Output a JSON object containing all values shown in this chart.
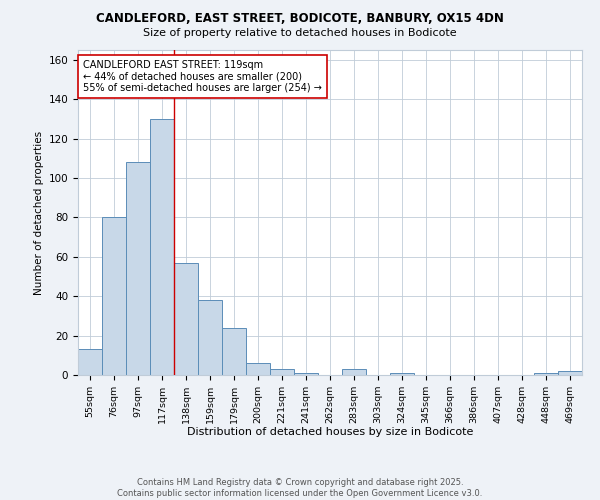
{
  "title1": "CANDLEFORD, EAST STREET, BODICOTE, BANBURY, OX15 4DN",
  "title2": "Size of property relative to detached houses in Bodicote",
  "xlabel": "Distribution of detached houses by size in Bodicote",
  "ylabel": "Number of detached properties",
  "bin_labels": [
    "55sqm",
    "76sqm",
    "97sqm",
    "117sqm",
    "138sqm",
    "159sqm",
    "179sqm",
    "200sqm",
    "221sqm",
    "241sqm",
    "262sqm",
    "283sqm",
    "303sqm",
    "324sqm",
    "345sqm",
    "366sqm",
    "386sqm",
    "407sqm",
    "428sqm",
    "448sqm",
    "469sqm"
  ],
  "bar_values": [
    13,
    80,
    108,
    130,
    57,
    38,
    24,
    6,
    3,
    1,
    0,
    3,
    0,
    1,
    0,
    0,
    0,
    0,
    0,
    1,
    2
  ],
  "bar_color": "#c8d8e8",
  "bar_edge_color": "#5b8db8",
  "vline_x_idx": 3,
  "vline_color": "#cc0000",
  "annotation_text": "CANDLEFORD EAST STREET: 119sqm\n← 44% of detached houses are smaller (200)\n55% of semi-detached houses are larger (254) →",
  "annotation_box_color": "#ffffff",
  "annotation_box_edge": "#cc0000",
  "ylim": [
    0,
    165
  ],
  "yticks": [
    0,
    20,
    40,
    60,
    80,
    100,
    120,
    140,
    160
  ],
  "footer": "Contains HM Land Registry data © Crown copyright and database right 2025.\nContains public sector information licensed under the Open Government Licence v3.0.",
  "bg_color": "#eef2f7",
  "plot_bg_color": "#ffffff",
  "grid_color": "#c0ccd8"
}
